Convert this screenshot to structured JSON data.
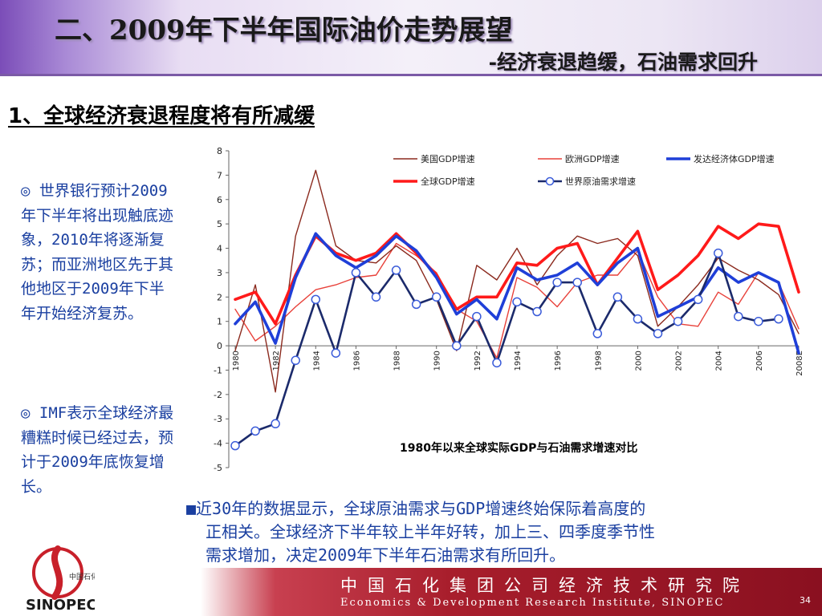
{
  "header": {
    "title": "二、2009年下半年国际油价走势展望",
    "subtitle": "-经济衰退趋缓，石油需求回升"
  },
  "section": {
    "heading": "1、全球经济衰退程度将有所减缓"
  },
  "bullets": [
    {
      "mark": "◎",
      "text": " 世界银行预计2009年下半年将出现触底迹象，2010年将逐渐复苏；而亚洲地区先于其他地区于2009年下半年开始经济复苏。"
    },
    {
      "mark": "◎",
      "text": "  IMF表示全球经济最糟糕时候已经过去，预计于2009年底恢复增长。"
    }
  ],
  "note": {
    "mark": "■",
    "line1": "近30年的数据显示，全球原油需求与GDP增速终始保际着高度的",
    "line2": "正相关。全球经济下半年较上半年好转，加上三、四季度季节性",
    "line3": "需求增加，决定2009年下半年石油需求有所回升。"
  },
  "footer": {
    "org_cn": "中国石化集团公司经济技术研究院",
    "org_en": "Economics & Development Research Institute, SINOPEC",
    "page": "34"
  },
  "logo": {
    "text": "中国石化",
    "brand": "SINOPEC"
  },
  "colors": {
    "us": "#8b2a1e",
    "eu": "#e8413a",
    "developed": "#1f3fd8",
    "world": "#ff1a1a",
    "oil": "#1b2a6b",
    "footer": "#a81e2c"
  },
  "chart_data": {
    "type": "line",
    "title": "1980年以来全球实际GDP与石油需求增速对比",
    "ylim": [
      -5,
      8
    ],
    "yticks": [
      "8",
      "7",
      "6",
      "5",
      "4",
      "3",
      "2",
      "1",
      "0",
      "-1",
      "-2",
      "-3",
      "-4",
      "-5"
    ],
    "xticks": [
      "1980",
      "1982",
      "1984",
      "1986",
      "1988",
      "1990",
      "1992",
      "1994",
      "1996",
      "1998",
      "2000",
      "2002",
      "2004",
      "2006",
      "2008E"
    ],
    "x": [
      1980,
      1981,
      1982,
      1983,
      1984,
      1985,
      1986,
      1987,
      1988,
      1989,
      1990,
      1991,
      1992,
      1993,
      1994,
      1995,
      1996,
      1997,
      1998,
      1999,
      2000,
      2001,
      2002,
      2003,
      2004,
      2005,
      2006,
      2007,
      2008
    ],
    "legend_placement": "top",
    "series": [
      {
        "name": "美国GDP增速",
        "key": "us",
        "marker": false,
        "values": [
          -0.2,
          2.5,
          -1.9,
          4.5,
          7.2,
          4.1,
          3.5,
          3.4,
          4.1,
          3.5,
          1.9,
          -0.2,
          3.3,
          2.7,
          4.0,
          2.5,
          3.7,
          4.5,
          4.2,
          4.4,
          3.7,
          0.8,
          1.6,
          2.5,
          3.6,
          3.1,
          2.7,
          2.1,
          0.5
        ]
      },
      {
        "name": "欧洲GDP增速",
        "key": "eu",
        "marker": false,
        "values": [
          1.5,
          0.2,
          0.8,
          1.6,
          2.3,
          2.5,
          2.8,
          2.9,
          4.2,
          3.7,
          3.0,
          1.5,
          1.0,
          -0.5,
          2.8,
          2.4,
          1.6,
          2.6,
          2.9,
          2.9,
          3.9,
          2.0,
          0.9,
          0.8,
          2.2,
          1.7,
          3.0,
          2.6,
          0.7
        ]
      },
      {
        "name": "发达经济体GDP增速",
        "key": "developed",
        "marker": false,
        "values": [
          0.9,
          1.8,
          0.1,
          2.8,
          4.6,
          3.7,
          3.2,
          3.7,
          4.5,
          3.9,
          2.8,
          1.3,
          1.9,
          1.1,
          3.2,
          2.7,
          2.9,
          3.4,
          2.5,
          3.4,
          4.0,
          1.2,
          1.6,
          2.0,
          3.2,
          2.6,
          3.0,
          2.6,
          -0.3
        ]
      },
      {
        "name": "全球GDP增速",
        "key": "world",
        "marker": false,
        "values": [
          1.9,
          2.2,
          0.9,
          2.9,
          4.5,
          3.8,
          3.5,
          3.8,
          4.6,
          3.8,
          2.9,
          1.5,
          2.0,
          2.0,
          3.4,
          3.3,
          4.0,
          4.2,
          2.5,
          3.6,
          4.7,
          2.3,
          2.9,
          3.7,
          4.9,
          4.4,
          5.0,
          4.9,
          2.2
        ]
      },
      {
        "name": "世界原油需求增速",
        "key": "oil",
        "marker": true,
        "values": [
          -4.1,
          -3.5,
          -3.2,
          -0.6,
          1.9,
          -0.3,
          3.0,
          2.0,
          3.1,
          1.7,
          2.0,
          0.0,
          1.2,
          -0.7,
          1.8,
          1.4,
          2.6,
          2.6,
          0.5,
          2.0,
          1.1,
          0.5,
          1.0,
          1.9,
          3.8,
          1.2,
          1.0,
          1.1,
          null
        ]
      }
    ]
  }
}
